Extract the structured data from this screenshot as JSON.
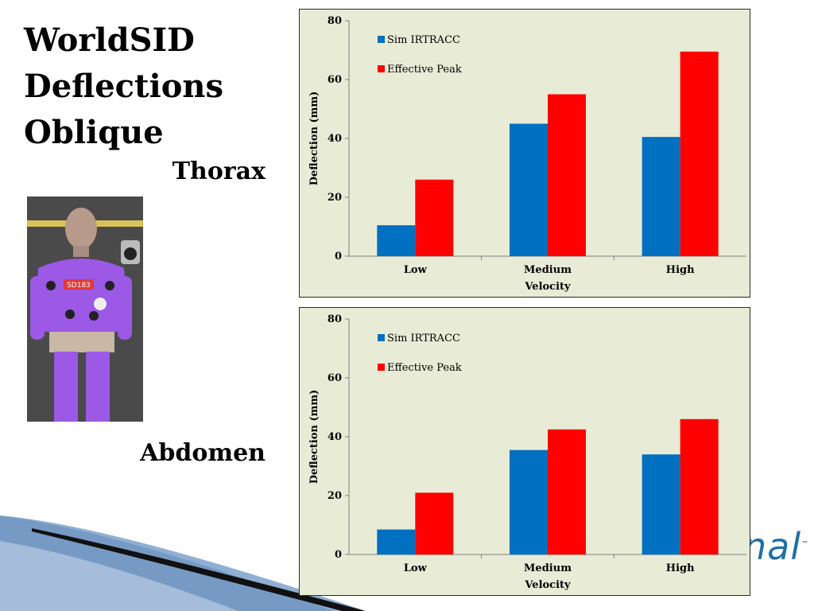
{
  "slide": {
    "title": "WorldSID\nDeflections\nOblique",
    "thorax_label": "Thorax",
    "abdomen_label": "Abdomen",
    "brand_text": "nal",
    "brand_tm": "™",
    "photo_tag": "SD183"
  },
  "colors": {
    "sim": "#0070c0",
    "effective": "#ff0000",
    "plot_bg": "#e8ecd6",
    "brand": "#1f6fa8"
  },
  "chart_data": [
    {
      "type": "bar",
      "categories": [
        "Low",
        "Medium",
        "High"
      ],
      "series": [
        {
          "name": "Sim IRTRACC",
          "values": [
            10.5,
            45,
            40.5
          ]
        },
        {
          "name": "Effective Peak",
          "values": [
            26,
            55,
            69.5
          ]
        }
      ],
      "xlabel": "Velocity",
      "ylabel": "Deflection (mm)",
      "ylim": [
        0,
        80
      ],
      "yticks": [
        "0",
        "20",
        "40",
        "60",
        "80"
      ],
      "legend_position": "top-left",
      "grid": false
    },
    {
      "type": "bar",
      "categories": [
        "Low",
        "Medium",
        "High"
      ],
      "series": [
        {
          "name": "Sim IRTRACC",
          "values": [
            8.5,
            35.5,
            34
          ]
        },
        {
          "name": "Effective Peak",
          "values": [
            21,
            42.5,
            46
          ]
        }
      ],
      "xlabel": "Velocity",
      "ylabel": "Deflection (mm)",
      "ylim": [
        0,
        80
      ],
      "yticks": [
        "0",
        "20",
        "40",
        "60",
        "80"
      ],
      "legend_position": "top-left",
      "grid": false
    }
  ]
}
